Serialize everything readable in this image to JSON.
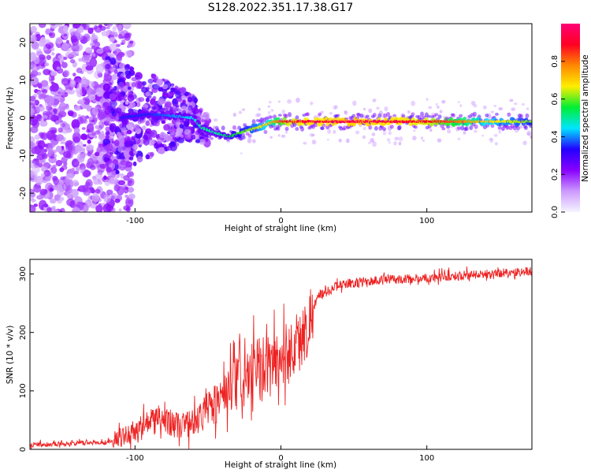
{
  "title": "S128.2022.351.17.38.G17",
  "colors": {
    "snr_line": "#ee2222",
    "colormap": [
      "#f5f5ff",
      "#cc99ff",
      "#8800ff",
      "#2200ff",
      "#00e5ff",
      "#00ee33",
      "#ffee00",
      "#ff8800",
      "#ff0022",
      "#ff0077"
    ]
  },
  "chart_data": [
    {
      "type": "heatmap",
      "title": "S128.2022.351.17.38.G17",
      "xlabel": "Height of straight line (km)",
      "ylabel": "Frequency (Hz)",
      "xlim": [
        -172,
        172
      ],
      "ylim": [
        -25,
        25
      ],
      "xticks": [
        -100,
        0,
        100
      ],
      "yticks": [
        -20,
        -10,
        0,
        10,
        20
      ],
      "grid": false,
      "colorbar": {
        "label": "Normalized spectral amplitude",
        "range": [
          0.0,
          1.0
        ],
        "ticks": [
          0.0,
          0.2,
          0.4,
          0.6,
          0.8
        ]
      },
      "ridge": [
        {
          "x": -110,
          "freq": 0.0,
          "amp": 0.35
        },
        {
          "x": -90,
          "freq": 1.0,
          "amp": 0.35
        },
        {
          "x": -75,
          "freq": 0.5,
          "amp": 0.4
        },
        {
          "x": -60,
          "freq": 0.0,
          "amp": 0.45
        },
        {
          "x": -55,
          "freq": -2.5,
          "amp": 0.5
        },
        {
          "x": -45,
          "freq": -4.0,
          "amp": 0.5
        },
        {
          "x": -35,
          "freq": -5.0,
          "amp": 0.55
        },
        {
          "x": -25,
          "freq": -3.5,
          "amp": 0.6
        },
        {
          "x": -15,
          "freq": -2.5,
          "amp": 0.65
        },
        {
          "x": -5,
          "freq": -1.0,
          "amp": 0.75
        },
        {
          "x": 5,
          "freq": -1.0,
          "amp": 0.9
        },
        {
          "x": 50,
          "freq": -1.0,
          "amp": 0.95
        },
        {
          "x": 100,
          "freq": -1.0,
          "amp": 0.9
        },
        {
          "x": 140,
          "freq": -1.0,
          "amp": 0.7
        },
        {
          "x": 172,
          "freq": -1.0,
          "amp": 0.6
        }
      ]
    },
    {
      "type": "line",
      "xlabel": "Height of straight line (km)",
      "ylabel": "SNR (10 * v/v)",
      "xlim": [
        -172,
        172
      ],
      "ylim": [
        0,
        325
      ],
      "xticks": [
        -100,
        0,
        100
      ],
      "yticks": [
        0,
        100,
        200,
        300
      ],
      "grid": false,
      "trend": [
        {
          "x": -172,
          "snr": 8
        },
        {
          "x": -120,
          "snr": 12
        },
        {
          "x": -110,
          "snr": 20
        },
        {
          "x": -90,
          "snr": 45
        },
        {
          "x": -80,
          "snr": 55
        },
        {
          "x": -70,
          "snr": 40
        },
        {
          "x": -60,
          "snr": 45
        },
        {
          "x": -45,
          "snr": 80
        },
        {
          "x": -30,
          "snr": 110
        },
        {
          "x": -15,
          "snr": 135
        },
        {
          "x": 0,
          "snr": 155
        },
        {
          "x": 15,
          "snr": 190
        },
        {
          "x": 25,
          "snr": 260
        },
        {
          "x": 40,
          "snr": 282
        },
        {
          "x": 70,
          "snr": 290
        },
        {
          "x": 100,
          "snr": 293
        },
        {
          "x": 140,
          "snr": 300
        },
        {
          "x": 172,
          "snr": 305
        }
      ]
    }
  ]
}
